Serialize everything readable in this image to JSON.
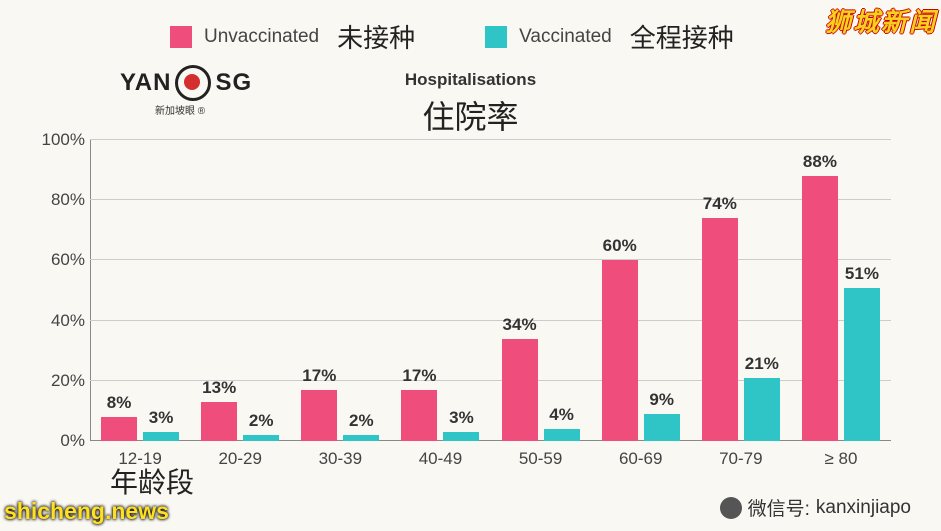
{
  "legend": {
    "unvaccinated_en": "Unvaccinated",
    "unvaccinated_cn": "未接种",
    "vaccinated_en": "Vaccinated",
    "vaccinated_cn": "全程接种"
  },
  "title": {
    "en": "Hospitalisations",
    "cn": "住院率"
  },
  "logo": {
    "text_left": "YAN",
    "text_right": "SG",
    "subtitle": "新加坡眼 ®"
  },
  "chart": {
    "type": "bar",
    "ylim": [
      0,
      100
    ],
    "yticks": [
      0,
      20,
      40,
      60,
      80,
      100
    ],
    "ytick_labels": [
      "0%",
      "20%",
      "40%",
      "60%",
      "80%",
      "100%"
    ],
    "categories": [
      "12-19",
      "20-29",
      "30-39",
      "40-49",
      "50-59",
      "60-69",
      "70-79",
      "≥ 80"
    ],
    "x_axis_title": "年龄段",
    "series": [
      {
        "name": "unvaccinated",
        "color": "#ef4d7c",
        "values": [
          8,
          13,
          17,
          17,
          34,
          60,
          74,
          88
        ],
        "labels": [
          "8%",
          "13%",
          "17%",
          "17%",
          "34%",
          "60%",
          "74%",
          "88%"
        ]
      },
      {
        "name": "vaccinated",
        "color": "#2fc4c6",
        "values": [
          3,
          2,
          2,
          3,
          4,
          9,
          21,
          51
        ],
        "labels": [
          "3%",
          "2%",
          "2%",
          "3%",
          "4%",
          "9%",
          "21%",
          "51%"
        ]
      }
    ],
    "colors": {
      "background": "#faf8f3",
      "grid": "#cccccc",
      "axis": "#888888",
      "text": "#333333"
    }
  },
  "watermarks": {
    "top_right": "狮城新闻",
    "bottom_left": "shicheng.news",
    "bottom_right_label": "微信号:",
    "bottom_right_value": "kanxinjiapo"
  }
}
